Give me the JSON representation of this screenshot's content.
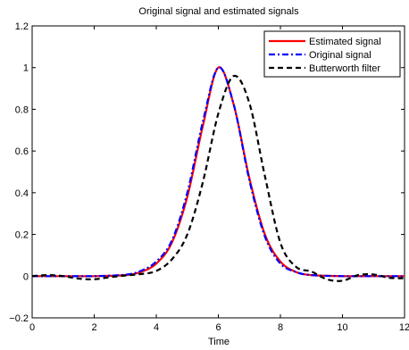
{
  "chart_data": {
    "type": "line",
    "title": "Original signal and estimated signals",
    "xlabel": "Time",
    "ylabel": "",
    "xlim": [
      0,
      12
    ],
    "ylim": [
      -0.2,
      1.2
    ],
    "xticks": [
      "0",
      "2",
      "4",
      "6",
      "8",
      "10",
      "12"
    ],
    "yticks": [
      "−0.2",
      "0",
      "0.2",
      "0.4",
      "0.6",
      "0.8",
      "1",
      "1.2"
    ],
    "grid": false,
    "legend_position": "top-right",
    "series": [
      {
        "name": "Estimated signal",
        "color": "#ff0000",
        "style": "solid",
        "x": [
          0,
          1,
          2,
          3,
          3.5,
          4,
          4.5,
          5,
          5.5,
          6,
          6.5,
          7,
          7.5,
          8,
          8.5,
          9,
          10,
          11,
          12
        ],
        "y": [
          0,
          0,
          0,
          0.005,
          0.02,
          0.06,
          0.16,
          0.38,
          0.72,
          1.0,
          0.82,
          0.47,
          0.2,
          0.07,
          0.02,
          0.005,
          0,
          0,
          0
        ]
      },
      {
        "name": "Original signal",
        "color": "#0000ff",
        "style": "dashdot",
        "x": [
          0,
          1,
          2,
          3,
          3.5,
          4,
          4.5,
          5,
          5.5,
          6,
          6.5,
          7,
          7.5,
          8,
          8.5,
          9,
          10,
          11,
          12
        ],
        "y": [
          0,
          0,
          0,
          0.007,
          0.025,
          0.07,
          0.17,
          0.4,
          0.74,
          1.0,
          0.82,
          0.46,
          0.19,
          0.06,
          0.02,
          0.005,
          0,
          0,
          0
        ]
      },
      {
        "name": "Butterworth filter",
        "color": "#000000",
        "style": "dashed",
        "x": [
          0,
          0.5,
          1,
          1.5,
          2,
          2.5,
          3,
          3.5,
          4,
          4.5,
          5,
          5.5,
          6,
          6.5,
          7,
          7.5,
          8,
          8.5,
          9,
          9.5,
          10,
          10.5,
          11,
          11.5,
          12
        ],
        "y": [
          0,
          0.005,
          0,
          -0.012,
          -0.015,
          -0.005,
          0.003,
          0.01,
          0.025,
          0.08,
          0.2,
          0.45,
          0.78,
          0.96,
          0.83,
          0.48,
          0.16,
          0.045,
          0.022,
          -0.015,
          -0.022,
          0.005,
          0.008,
          -0.008,
          -0.01
        ]
      }
    ]
  }
}
